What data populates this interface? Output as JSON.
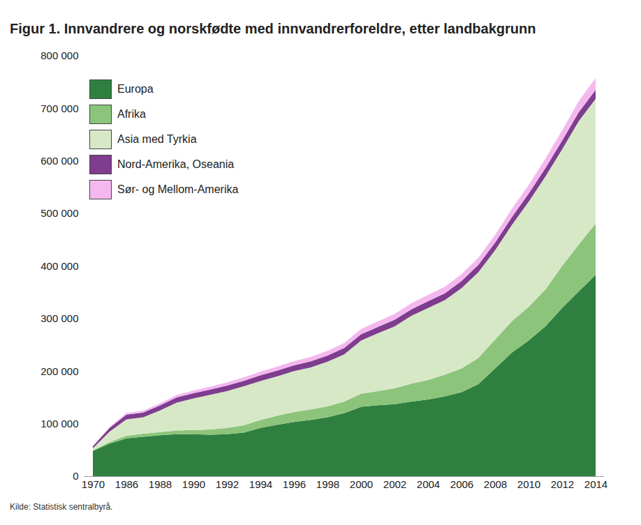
{
  "chart_data": {
    "type": "area",
    "title": "Figur 1. Innvandrere og norskfødte med innvandrerforeldre, etter landbakgrunn",
    "caption": "Kilde: Statistisk sentralbyrå.",
    "stacked": true,
    "legend": "top-left",
    "categories": [
      "1970",
      null,
      "1986",
      null,
      "1988",
      null,
      "1990",
      null,
      "1992",
      null,
      "1994",
      null,
      "1996",
      null,
      "1998",
      null,
      "2000",
      null,
      "2002",
      null,
      "2004",
      null,
      "2006",
      null,
      "2008",
      null,
      "2010",
      null,
      "2012",
      null,
      "2014"
    ],
    "series": [
      {
        "name": "Europa",
        "color": "#2f8040",
        "values": [
          48000,
          62000,
          72000,
          75000,
          78000,
          80000,
          80000,
          79000,
          80000,
          83000,
          92000,
          98000,
          103000,
          107000,
          112000,
          120000,
          132000,
          135000,
          137000,
          142000,
          146000,
          152000,
          160000,
          175000,
          205000,
          235000,
          258000,
          285000,
          320000,
          352000,
          383000
        ]
      },
      {
        "name": "Afrika",
        "color": "#8cc47b",
        "values": [
          1000,
          3000,
          5000,
          6000,
          6000,
          7000,
          8000,
          10000,
          12000,
          14000,
          15000,
          17000,
          19000,
          20000,
          21000,
          22000,
          25000,
          27000,
          30000,
          34000,
          37000,
          41000,
          45000,
          50000,
          55000,
          60000,
          64000,
          70000,
          80000,
          89000,
          98000
        ]
      },
      {
        "name": "Asia med Tyrkia",
        "color": "#d7e8c7",
        "values": [
          4000,
          20000,
          31000,
          31000,
          41000,
          53000,
          60000,
          66000,
          70000,
          74000,
          74000,
          75000,
          78000,
          80000,
          85000,
          90000,
          101000,
          110000,
          118000,
          129000,
          137000,
          142000,
          153000,
          163000,
          170000,
          183000,
          200000,
          215000,
          222000,
          235000,
          237000
        ]
      },
      {
        "name": "Nord-Amerika, Oseania",
        "color": "#7e3d8e",
        "values": [
          4000,
          7000,
          9000,
          9000,
          9500,
          10000,
          10000,
          10000,
          10500,
          10500,
          11000,
          11000,
          11000,
          11500,
          11500,
          12000,
          12000,
          12000,
          12500,
          12500,
          13000,
          13000,
          13500,
          14000,
          14500,
          15000,
          15500,
          16000,
          16500,
          17000,
          17000
        ]
      },
      {
        "name": "Sør- og Mellom-Amerika",
        "color": "#f4b8ef",
        "values": [
          500,
          2000,
          3000,
          3500,
          4000,
          4500,
          5000,
          5500,
          6000,
          6500,
          7000,
          7500,
          8000,
          8500,
          9000,
          9500,
          10000,
          10500,
          11000,
          11500,
          12000,
          12500,
          13000,
          13500,
          14500,
          15500,
          16500,
          18000,
          19500,
          21000,
          22500
        ]
      }
    ],
    "ylim": [
      0,
      800000
    ],
    "yticks": [
      0,
      {
        "value": 100000,
        "label": "100 000"
      },
      {
        "value": 200000,
        "label": "200 000"
      },
      {
        "value": 300000,
        "label": "300 000"
      },
      {
        "value": 400000,
        "label": "400 000"
      },
      {
        "value": 500000,
        "label": "500 000"
      },
      {
        "value": 600000,
        "label": "600 000"
      },
      {
        "value": 700000,
        "label": "700 000"
      },
      {
        "value": 800000,
        "label": "800 000"
      }
    ]
  }
}
